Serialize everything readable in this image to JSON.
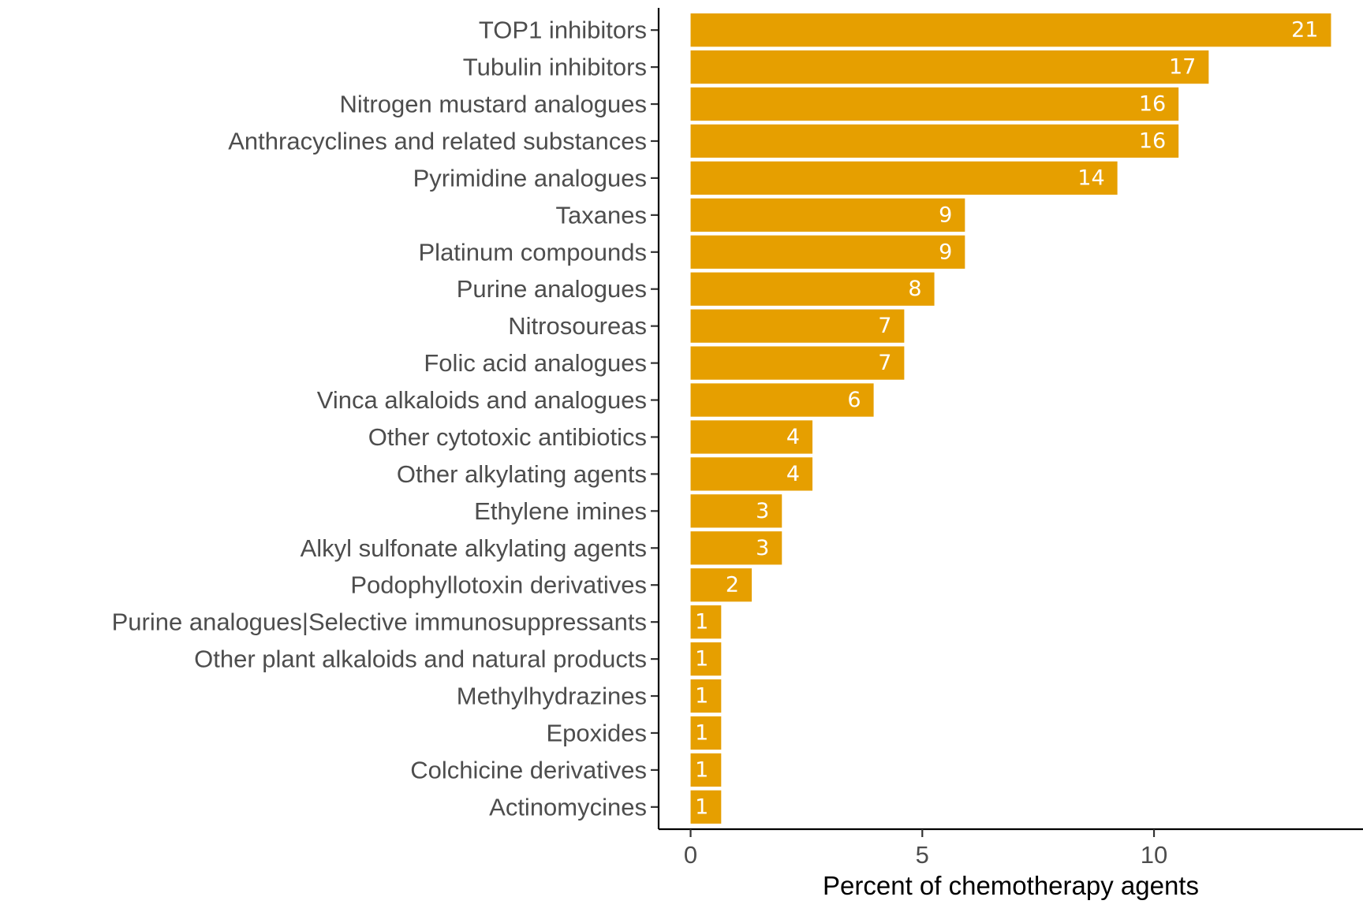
{
  "chart_data": {
    "type": "bar",
    "orientation": "horizontal",
    "categories": [
      "TOP1 inhibitors",
      "Tubulin inhibitors",
      "Nitrogen mustard analogues",
      "Anthracyclines and related substances",
      "Pyrimidine analogues",
      "Taxanes",
      "Platinum compounds",
      "Purine analogues",
      "Nitrosoureas",
      "Folic acid analogues",
      "Vinca alkaloids and analogues",
      "Other cytotoxic antibiotics",
      "Other alkylating agents",
      "Ethylene imines",
      "Alkyl sulfonate alkylating agents",
      "Podophyllotoxin derivatives",
      "Purine analogues|Selective immunosuppressants",
      "Other plant alkaloids and natural products",
      "Methylhydrazines",
      "Epoxides",
      "Colchicine derivatives",
      "Actinomycines"
    ],
    "values": [
      13.82,
      11.18,
      10.53,
      10.53,
      9.21,
      5.92,
      5.92,
      5.26,
      4.61,
      4.61,
      3.95,
      2.63,
      2.63,
      1.97,
      1.97,
      1.32,
      0.66,
      0.66,
      0.66,
      0.66,
      0.66,
      0.66
    ],
    "data_labels": [
      "21",
      "17",
      "16",
      "16",
      "14",
      "9",
      "9",
      "8",
      "7",
      "7",
      "6",
      "4",
      "4",
      "3",
      "3",
      "2",
      "1",
      "1",
      "1",
      "1",
      "1",
      "1"
    ],
    "xlabel": "Percent of chemotherapy agents",
    "ylabel": "",
    "xticks": [
      0,
      5,
      10
    ],
    "xtick_labels": [
      "0",
      "5",
      "10"
    ],
    "xlim": [
      -0.69,
      14.51
    ],
    "grid": false,
    "legend": "none",
    "bar_color": "#E69F00",
    "label_color": "#FFFFFF"
  }
}
